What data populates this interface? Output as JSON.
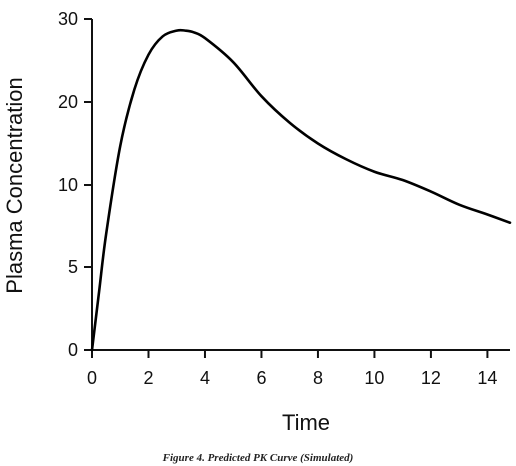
{
  "chart_data": {
    "type": "line",
    "title": "",
    "xlabel": "Time",
    "ylabel": "Plasma Concentration",
    "xlim": [
      0,
      14.8
    ],
    "y_ticks": [
      0,
      5,
      10,
      20,
      30
    ],
    "x_ticks": [
      0,
      2,
      4,
      6,
      8,
      10,
      12,
      14
    ],
    "grid": false,
    "legend": "none",
    "series": [
      {
        "color": "#000000",
        "x": [
          0,
          0.25,
          0.5,
          1,
          1.5,
          2,
          2.5,
          3,
          3.3,
          3.6,
          4,
          5,
          6,
          7,
          8,
          9,
          10,
          11,
          12,
          13,
          14,
          14.8
        ],
        "y": [
          0,
          3.5,
          7,
          14.7,
          21.5,
          25.7,
          27.9,
          28.6,
          28.6,
          28.4,
          27.7,
          24.8,
          20.7,
          17.5,
          15.0,
          13.1,
          11.6,
          10.6,
          9.6,
          8.8,
          8.2,
          7.7
        ]
      }
    ]
  },
  "caption": "Figure 4. Predicted PK Curve (Simulated)"
}
